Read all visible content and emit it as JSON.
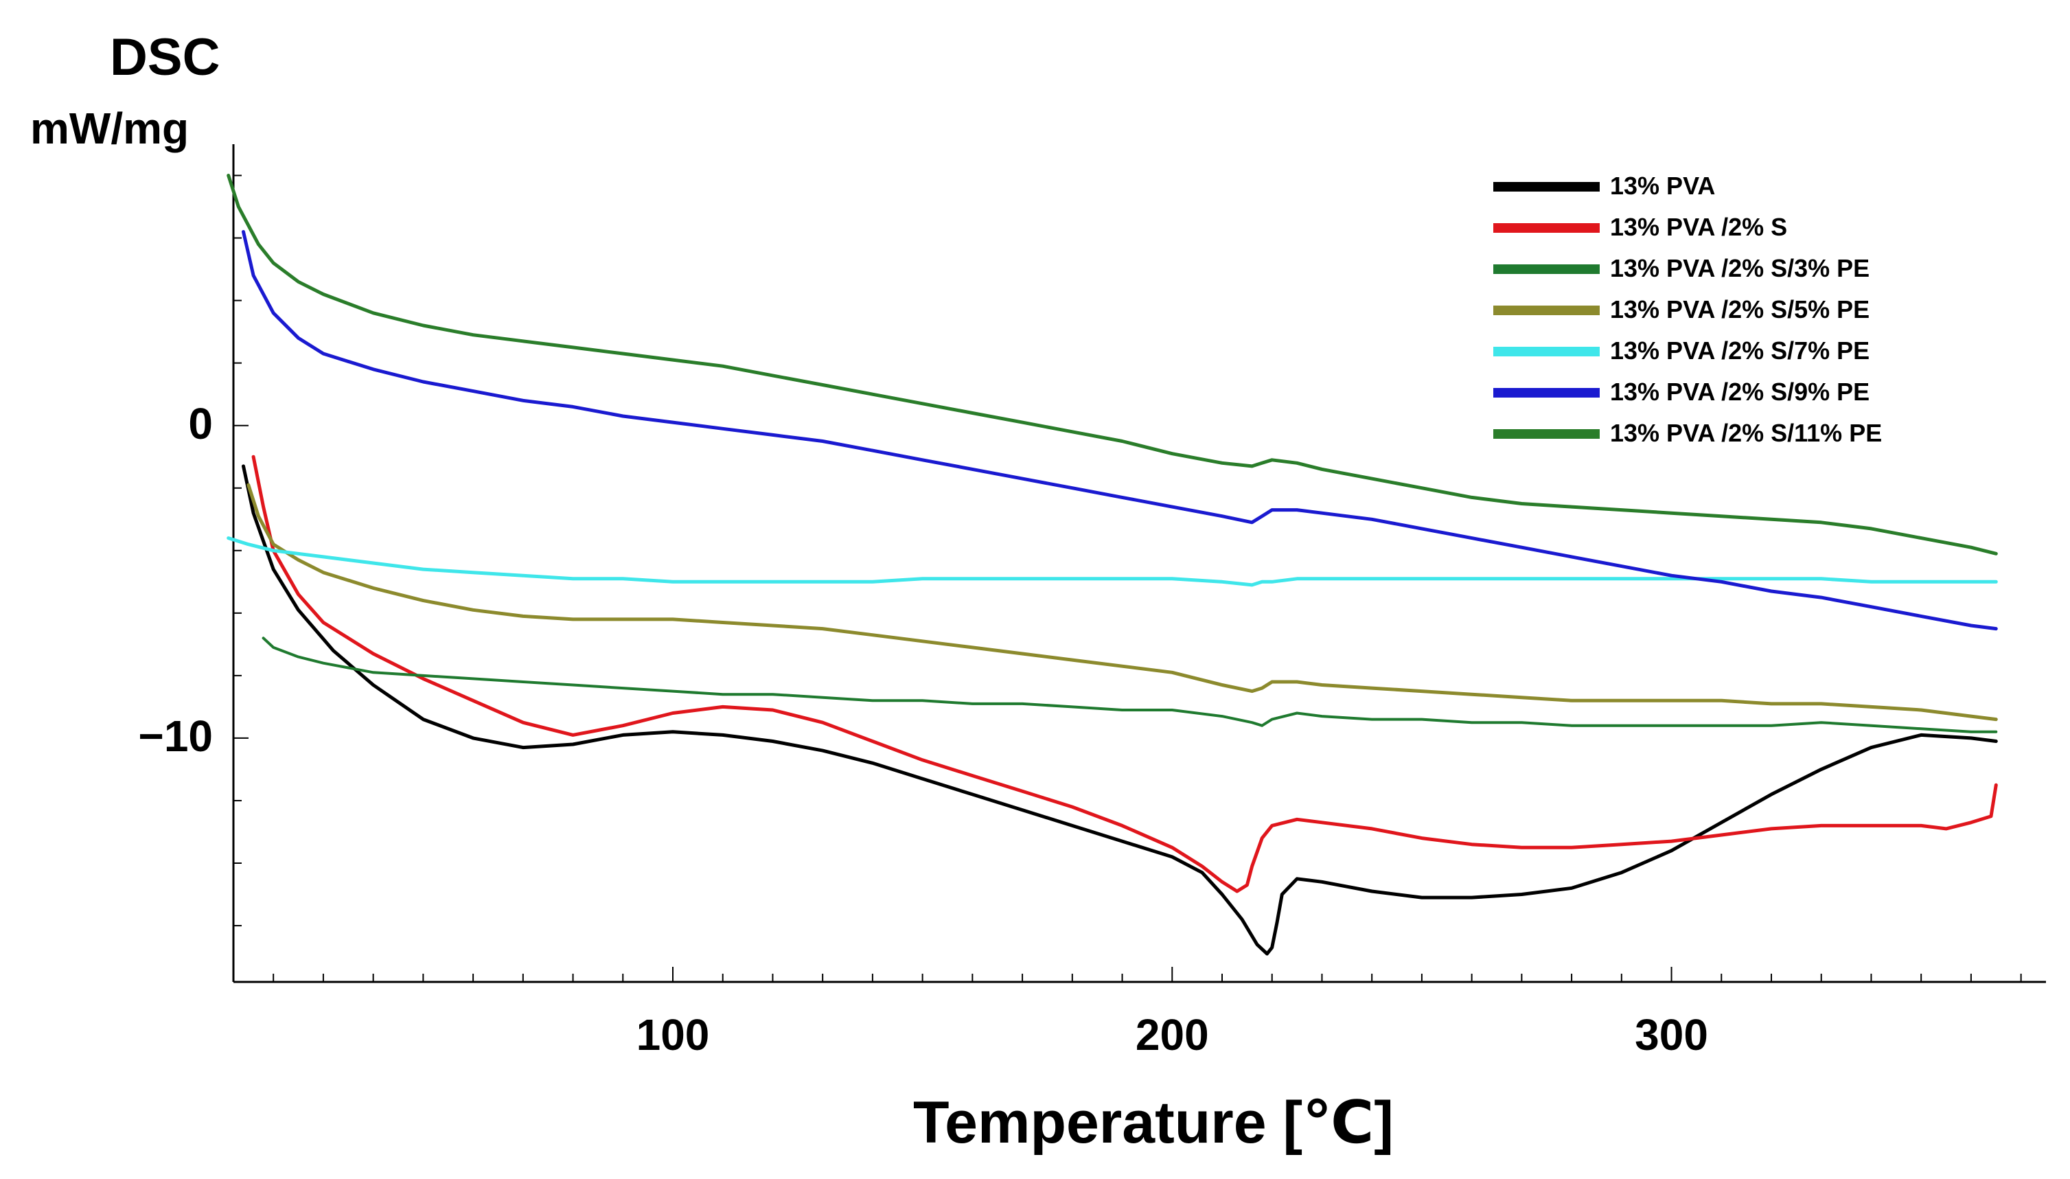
{
  "chart_data": {
    "type": "line",
    "title": "",
    "ylabel_line1": "DSC",
    "ylabel_line2": "mW/mg",
    "xlabel": "Temperature [℃]",
    "xlim": [
      12,
      375
    ],
    "ylim": [
      -17.8,
      9.0
    ],
    "x_ticks": [
      100,
      200,
      300
    ],
    "x_tick_labels": [
      "100",
      "200",
      "300"
    ],
    "y_ticks": [
      0,
      -10
    ],
    "y_tick_labels": [
      "0",
      "−10"
    ],
    "grid": false,
    "legend_position": "top-right",
    "series": [
      {
        "name": "13% PVA",
        "color": "#000000",
        "x": [
          14,
          16,
          20,
          25,
          32,
          40,
          50,
          60,
          70,
          80,
          90,
          100,
          110,
          120,
          130,
          140,
          150,
          160,
          170,
          180,
          190,
          200,
          206,
          210,
          214,
          217,
          219,
          220,
          221,
          222,
          225,
          230,
          240,
          250,
          260,
          270,
          280,
          290,
          300,
          310,
          320,
          330,
          340,
          350,
          360,
          365
        ],
        "y": [
          -1.3,
          -2.8,
          -4.6,
          -5.9,
          -7.2,
          -8.3,
          -9.4,
          -10.0,
          -10.3,
          -10.2,
          -9.9,
          -9.8,
          -9.9,
          -10.1,
          -10.4,
          -10.8,
          -11.3,
          -11.8,
          -12.3,
          -12.8,
          -13.3,
          -13.8,
          -14.3,
          -15.0,
          -15.8,
          -16.6,
          -16.9,
          -16.7,
          -15.9,
          -15.0,
          -14.5,
          -14.6,
          -14.9,
          -15.1,
          -15.1,
          -15.0,
          -14.8,
          -14.3,
          -13.6,
          -12.7,
          -11.8,
          -11.0,
          -10.3,
          -9.9,
          -10.0,
          -10.1
        ],
        "linewidth": 5
      },
      {
        "name": "13% PVA /2% S",
        "color": "#e0161c",
        "x": [
          16,
          18,
          20,
          25,
          30,
          40,
          50,
          60,
          70,
          80,
          90,
          100,
          110,
          120,
          130,
          140,
          150,
          160,
          170,
          180,
          190,
          200,
          206,
          210,
          213,
          215,
          216,
          218,
          220,
          225,
          230,
          240,
          250,
          260,
          270,
          280,
          290,
          300,
          310,
          320,
          330,
          340,
          350,
          355,
          360,
          364,
          365
        ],
        "y": [
          -1.0,
          -2.6,
          -4.0,
          -5.4,
          -6.3,
          -7.3,
          -8.1,
          -8.8,
          -9.5,
          -9.9,
          -9.6,
          -9.2,
          -9.0,
          -9.1,
          -9.5,
          -10.1,
          -10.7,
          -11.2,
          -11.7,
          -12.2,
          -12.8,
          -13.5,
          -14.1,
          -14.6,
          -14.9,
          -14.7,
          -14.1,
          -13.2,
          -12.8,
          -12.6,
          -12.7,
          -12.9,
          -13.2,
          -13.4,
          -13.5,
          -13.5,
          -13.4,
          -13.3,
          -13.1,
          -12.9,
          -12.8,
          -12.8,
          -12.8,
          -12.9,
          -12.7,
          -12.5,
          -11.5
        ],
        "linewidth": 5
      },
      {
        "name": "13% PVA /2% S/3% PE",
        "color": "#1f7a2f",
        "x": [
          18,
          20,
          25,
          30,
          40,
          50,
          60,
          70,
          80,
          90,
          100,
          110,
          120,
          130,
          140,
          150,
          160,
          170,
          180,
          190,
          200,
          210,
          216,
          218,
          220,
          225,
          230,
          240,
          250,
          260,
          270,
          280,
          290,
          300,
          310,
          320,
          330,
          340,
          350,
          360,
          365
        ],
        "y": [
          -6.8,
          -7.1,
          -7.4,
          -7.6,
          -7.9,
          -8.0,
          -8.1,
          -8.2,
          -8.3,
          -8.4,
          -8.5,
          -8.6,
          -8.6,
          -8.7,
          -8.8,
          -8.8,
          -8.9,
          -8.9,
          -9.0,
          -9.1,
          -9.1,
          -9.3,
          -9.5,
          -9.6,
          -9.4,
          -9.2,
          -9.3,
          -9.4,
          -9.4,
          -9.5,
          -9.5,
          -9.6,
          -9.6,
          -9.6,
          -9.6,
          -9.6,
          -9.5,
          -9.6,
          -9.7,
          -9.8,
          -9.8
        ],
        "linewidth": 4
      },
      {
        "name": "13% PVA /2% S/5% PE",
        "color": "#8c8a2d",
        "x": [
          15,
          17,
          20,
          25,
          30,
          40,
          50,
          60,
          70,
          80,
          90,
          100,
          110,
          120,
          130,
          140,
          150,
          160,
          170,
          180,
          190,
          200,
          210,
          216,
          218,
          220,
          225,
          230,
          240,
          250,
          260,
          270,
          280,
          290,
          300,
          310,
          320,
          330,
          340,
          350,
          360,
          365
        ],
        "y": [
          -1.9,
          -2.9,
          -3.8,
          -4.3,
          -4.7,
          -5.2,
          -5.6,
          -5.9,
          -6.1,
          -6.2,
          -6.2,
          -6.2,
          -6.3,
          -6.4,
          -6.5,
          -6.7,
          -6.9,
          -7.1,
          -7.3,
          -7.5,
          -7.7,
          -7.9,
          -8.3,
          -8.5,
          -8.4,
          -8.2,
          -8.2,
          -8.3,
          -8.4,
          -8.5,
          -8.6,
          -8.7,
          -8.8,
          -8.8,
          -8.8,
          -8.8,
          -8.9,
          -8.9,
          -9.0,
          -9.1,
          -9.3,
          -9.4
        ],
        "linewidth": 5
      },
      {
        "name": "13% PVA /2% S/7% PE",
        "color": "#3fe6ea",
        "x": [
          11,
          15,
          20,
          30,
          40,
          50,
          60,
          70,
          80,
          90,
          100,
          110,
          120,
          130,
          140,
          150,
          160,
          170,
          180,
          190,
          200,
          210,
          216,
          218,
          220,
          225,
          230,
          240,
          250,
          260,
          270,
          280,
          290,
          300,
          310,
          320,
          330,
          340,
          350,
          360,
          365
        ],
        "y": [
          -3.6,
          -3.8,
          -4.0,
          -4.2,
          -4.4,
          -4.6,
          -4.7,
          -4.8,
          -4.9,
          -4.9,
          -5.0,
          -5.0,
          -5.0,
          -5.0,
          -5.0,
          -4.9,
          -4.9,
          -4.9,
          -4.9,
          -4.9,
          -4.9,
          -5.0,
          -5.1,
          -5.0,
          -5.0,
          -4.9,
          -4.9,
          -4.9,
          -4.9,
          -4.9,
          -4.9,
          -4.9,
          -4.9,
          -4.9,
          -4.9,
          -4.9,
          -4.9,
          -5.0,
          -5.0,
          -5.0,
          -5.0
        ],
        "linewidth": 5
      },
      {
        "name": "13% PVA /2% S/9% PE",
        "color": "#1a1ad0",
        "x": [
          14,
          16,
          20,
          25,
          30,
          40,
          50,
          60,
          70,
          80,
          90,
          100,
          110,
          120,
          130,
          140,
          150,
          160,
          170,
          180,
          190,
          200,
          210,
          216,
          218,
          220,
          225,
          230,
          240,
          250,
          260,
          270,
          280,
          290,
          300,
          310,
          320,
          330,
          340,
          350,
          360,
          365
        ],
        "y": [
          6.2,
          4.8,
          3.6,
          2.8,
          2.3,
          1.8,
          1.4,
          1.1,
          0.8,
          0.6,
          0.3,
          0.1,
          -0.1,
          -0.3,
          -0.5,
          -0.8,
          -1.1,
          -1.4,
          -1.7,
          -2.0,
          -2.3,
          -2.6,
          -2.9,
          -3.1,
          -2.9,
          -2.7,
          -2.7,
          -2.8,
          -3.0,
          -3.3,
          -3.6,
          -3.9,
          -4.2,
          -4.5,
          -4.8,
          -5.0,
          -5.3,
          -5.5,
          -5.8,
          -6.1,
          -6.4,
          -6.5
        ],
        "linewidth": 5
      },
      {
        "name": "13% PVA /2% S/11% PE",
        "color": "#2a7d2a",
        "x": [
          11,
          13,
          17,
          20,
          25,
          30,
          40,
          50,
          60,
          70,
          80,
          90,
          100,
          110,
          120,
          130,
          140,
          150,
          160,
          170,
          180,
          190,
          200,
          210,
          216,
          218,
          220,
          225,
          230,
          240,
          250,
          260,
          270,
          280,
          290,
          300,
          310,
          320,
          330,
          340,
          350,
          360,
          365
        ],
        "y": [
          8.0,
          7.0,
          5.8,
          5.2,
          4.6,
          4.2,
          3.6,
          3.2,
          2.9,
          2.7,
          2.5,
          2.3,
          2.1,
          1.9,
          1.6,
          1.3,
          1.0,
          0.7,
          0.4,
          0.1,
          -0.2,
          -0.5,
          -0.9,
          -1.2,
          -1.3,
          -1.2,
          -1.1,
          -1.2,
          -1.4,
          -1.7,
          -2.0,
          -2.3,
          -2.5,
          -2.6,
          -2.7,
          -2.8,
          -2.9,
          -3.0,
          -3.1,
          -3.3,
          -3.6,
          -3.9,
          -4.1
        ],
        "linewidth": 5
      }
    ]
  },
  "colors": {
    "axis": "#000000",
    "background": "#ffffff"
  }
}
